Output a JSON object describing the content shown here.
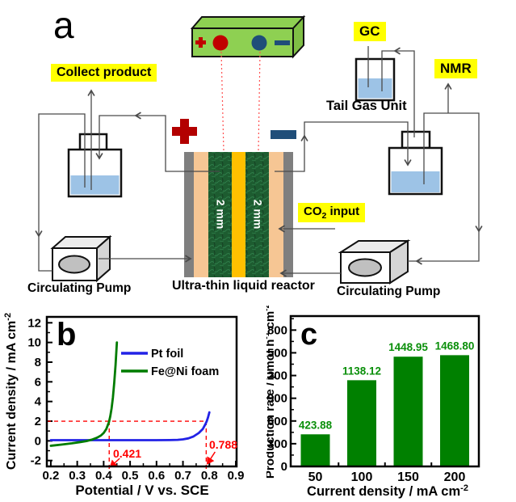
{
  "figure": {
    "panel_a_letter": "a",
    "panel_b_letter": "b",
    "panel_c_letter": "c"
  },
  "diagram": {
    "collect_product": "Collect product",
    "gc": "GC",
    "nmr": "NMR",
    "tail_gas_unit": "Tail Gas Unit",
    "co2_prefix": "CO",
    "co2_sub": "2",
    "co2_suffix": " input",
    "reactor_caption": "Ultra-thin liquid reactor",
    "left_pump_caption": "Circulating Pump",
    "right_pump_caption": "Circulating Pump",
    "electrode_left_thickness": "2 mm",
    "electrode_right_thickness": "2 mm",
    "colors": {
      "highlight_yellow": "#ffff00",
      "supply_green": "#8ed052",
      "anode_red": "#c00000",
      "cathode_blue": "#1f4e79",
      "membrane_yellow": "#ffc000",
      "electrode_green": "#1d5c30",
      "gasket_peach": "#f6c694",
      "frame_gray": "#7f7f7f",
      "liquid_blue": "#9dc3e6"
    }
  },
  "chart_data": [
    {
      "type": "line",
      "panel": "b",
      "xlabel": "Potential / V vs. SCE",
      "ylabel_main": "Current density / mA cm",
      "ylabel_sup": "-2",
      "xlim": [
        0.185,
        0.903
      ],
      "ylim": [
        -2.6,
        12.6
      ],
      "xticks": [
        0.2,
        0.3,
        0.4,
        0.5,
        0.6,
        0.7,
        0.8,
        0.9
      ],
      "xtick_labels": [
        "0.2",
        "0.3",
        "0.4",
        "0.5",
        "0.6",
        "0.7",
        "0.8",
        "0.9"
      ],
      "yticks": [
        -2,
        0,
        2,
        4,
        6,
        8,
        10,
        12
      ],
      "ytick_labels": [
        "-2",
        "0",
        "2",
        "4",
        "6",
        "8",
        "10",
        "12"
      ],
      "grid": false,
      "legend_position": "upper right",
      "series": [
        {
          "name": "Pt foil",
          "color": "#2222e6",
          "x": [
            0.2,
            0.3,
            0.4,
            0.5,
            0.6,
            0.65,
            0.68,
            0.7,
            0.72,
            0.74,
            0.76,
            0.775,
            0.785,
            0.79,
            0.795,
            0.8
          ],
          "y": [
            0.07,
            0.07,
            0.07,
            0.07,
            0.07,
            0.08,
            0.1,
            0.15,
            0.25,
            0.45,
            0.8,
            1.2,
            1.7,
            2.0,
            2.4,
            2.9
          ]
        },
        {
          "name": "Fe@Ni foam",
          "color": "#007c00",
          "x": [
            0.2,
            0.24,
            0.28,
            0.31,
            0.335,
            0.355,
            0.375,
            0.39,
            0.4,
            0.41,
            0.42,
            0.425,
            0.43,
            0.435,
            0.44,
            0.445,
            0.45
          ],
          "y": [
            -0.5,
            -0.38,
            -0.25,
            -0.13,
            -0.02,
            0.12,
            0.32,
            0.55,
            0.8,
            1.2,
            1.9,
            2.5,
            3.3,
            4.4,
            5.9,
            7.7,
            10.0
          ]
        }
      ],
      "annotations": {
        "hline_y": 2,
        "v1": 0.421,
        "v1_label": "0.421",
        "v2": 0.788,
        "v2_label": "0.788",
        "color": "#ff0000"
      }
    },
    {
      "type": "bar",
      "panel": "c",
      "xlabel_main": "Current density / mA cm",
      "xlabel_sup": "-2",
      "ylabel_main": "Production rate / μmol h",
      "ylabel_sup1": "-1",
      "ylabel_mid": " cm",
      "ylabel_sup2": "-2",
      "categories": [
        "50",
        "100",
        "150",
        "200"
      ],
      "values": [
        423.88,
        1138.12,
        1448.95,
        1468.8
      ],
      "value_labels": [
        "423.88",
        "1138.12",
        "1448.95",
        "1468.80"
      ],
      "bar_color": "#008000",
      "value_label_color": "#0a8f0a",
      "ylim": [
        0,
        1985
      ],
      "yticks": [
        0,
        300,
        600,
        900,
        1200,
        1500,
        1800
      ],
      "ytick_labels": [
        "0",
        "300",
        "600",
        "900",
        "1200",
        "1500",
        "1800"
      ],
      "grid": false
    }
  ]
}
